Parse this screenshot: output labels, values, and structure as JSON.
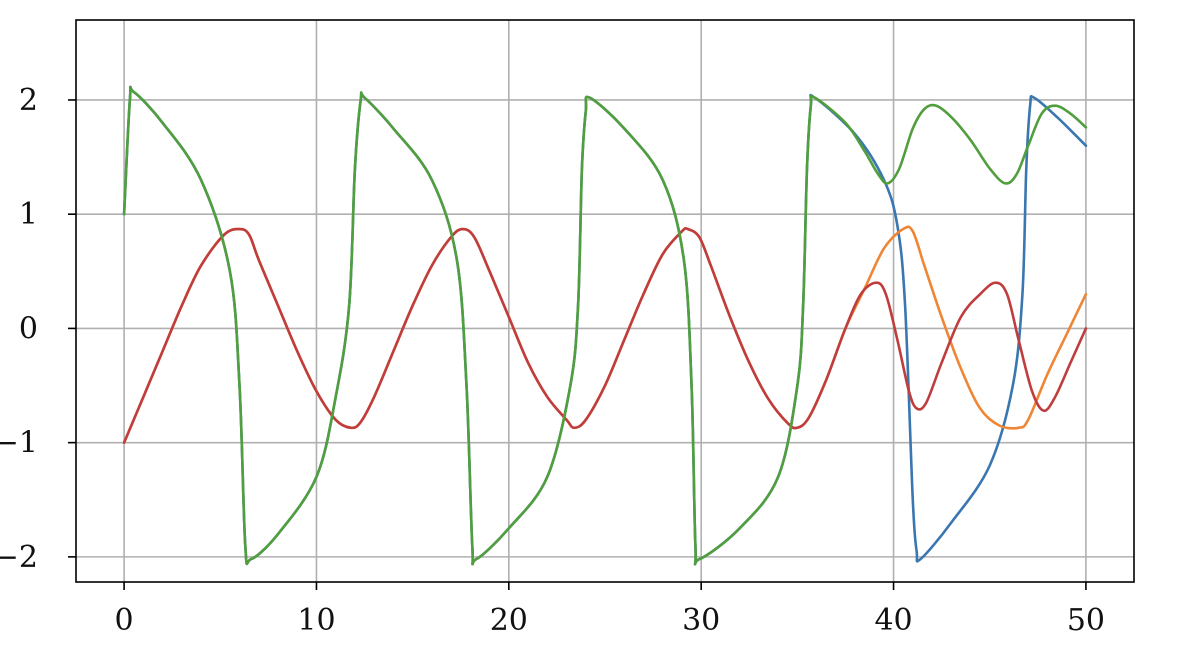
{
  "chart_data": {
    "type": "line",
    "title": "",
    "xlabel": "",
    "ylabel": "",
    "xlim": [
      -2.5,
      52.5
    ],
    "ylim": [
      -2.22,
      2.7
    ],
    "grid": true,
    "legend": "none",
    "xticks": [
      0,
      10,
      20,
      30,
      40,
      50
    ],
    "xtick_labels": [
      "0",
      "10",
      "20",
      "30",
      "40",
      "50"
    ],
    "yticks": [
      -2,
      -1,
      0,
      1,
      2
    ],
    "ytick_labels": [
      "−2",
      "−1",
      "0",
      "1",
      "2"
    ],
    "series": [
      {
        "color": "#3a76af",
        "points": [
          [
            0,
            1.0
          ],
          [
            0.3,
            2.0
          ],
          [
            0.5,
            2.07
          ],
          [
            2,
            1.8
          ],
          [
            4,
            1.3
          ],
          [
            5.5,
            0.5
          ],
          [
            6,
            -0.5
          ],
          [
            6.3,
            -1.9
          ],
          [
            6.6,
            -2.02
          ],
          [
            8,
            -1.8
          ],
          [
            10,
            -1.3
          ],
          [
            11,
            -0.6
          ],
          [
            11.7,
            0.2
          ],
          [
            12,
            1.4
          ],
          [
            12.3,
            2.0
          ],
          [
            12.5,
            2.02
          ],
          [
            14,
            1.75
          ],
          [
            16,
            1.3
          ],
          [
            17.3,
            0.6
          ],
          [
            17.8,
            -0.5
          ],
          [
            18.1,
            -1.9
          ],
          [
            18.3,
            -2.02
          ],
          [
            20,
            -1.75
          ],
          [
            22,
            -1.3
          ],
          [
            23.2,
            -0.5
          ],
          [
            23.6,
            0.2
          ],
          [
            23.8,
            1.4
          ],
          [
            24.0,
            1.9
          ],
          [
            24.2,
            2.02
          ],
          [
            26,
            1.75
          ],
          [
            28,
            1.3
          ],
          [
            29.1,
            0.6
          ],
          [
            29.5,
            -0.5
          ],
          [
            29.7,
            -1.9
          ],
          [
            29.9,
            -2.02
          ],
          [
            32,
            -1.75
          ],
          [
            34,
            -1.3
          ],
          [
            35,
            -0.5
          ],
          [
            35.3,
            0.2
          ],
          [
            35.5,
            1.4
          ],
          [
            35.7,
            1.95
          ],
          [
            35.9,
            2.02
          ],
          [
            38,
            1.7
          ],
          [
            39.5,
            1.3
          ],
          [
            40.2,
            0.9
          ],
          [
            40.6,
            0.2
          ],
          [
            41.0,
            -1.5
          ],
          [
            41.2,
            -1.95
          ],
          [
            41.4,
            -2.02
          ],
          [
            43,
            -1.7
          ],
          [
            45,
            -1.2
          ],
          [
            46.2,
            -0.5
          ],
          [
            46.7,
            0.3
          ],
          [
            46.9,
            1.4
          ],
          [
            47.1,
            1.95
          ],
          [
            47.3,
            2.02
          ],
          [
            48.5,
            1.85
          ],
          [
            50,
            1.6
          ]
        ]
      },
      {
        "color": "#ef8636",
        "points": [
          [
            0,
            -1.0
          ],
          [
            1,
            -0.6
          ],
          [
            2,
            -0.2
          ],
          [
            3,
            0.2
          ],
          [
            4,
            0.55
          ],
          [
            5.2,
            0.82
          ],
          [
            6,
            0.87
          ],
          [
            6.5,
            0.82
          ],
          [
            7,
            0.6
          ],
          [
            8,
            0.2
          ],
          [
            9,
            -0.2
          ],
          [
            10,
            -0.55
          ],
          [
            11,
            -0.8
          ],
          [
            11.8,
            -0.87
          ],
          [
            12.3,
            -0.82
          ],
          [
            13,
            -0.6
          ],
          [
            14,
            -0.2
          ],
          [
            15,
            0.2
          ],
          [
            16,
            0.55
          ],
          [
            17,
            0.8
          ],
          [
            17.6,
            0.87
          ],
          [
            18.2,
            0.8
          ],
          [
            19,
            0.5
          ],
          [
            20,
            0.1
          ],
          [
            21,
            -0.3
          ],
          [
            22,
            -0.6
          ],
          [
            23,
            -0.8
          ],
          [
            23.4,
            -0.87
          ],
          [
            24,
            -0.8
          ],
          [
            25,
            -0.5
          ],
          [
            26,
            -0.1
          ],
          [
            27,
            0.3
          ],
          [
            28,
            0.65
          ],
          [
            29,
            0.85
          ],
          [
            29.3,
            0.87
          ],
          [
            29.9,
            0.8
          ],
          [
            30.5,
            0.55
          ],
          [
            31.5,
            0.1
          ],
          [
            32.5,
            -0.3
          ],
          [
            33.5,
            -0.62
          ],
          [
            34.5,
            -0.83
          ],
          [
            35,
            -0.87
          ],
          [
            35.6,
            -0.78
          ],
          [
            36.5,
            -0.45
          ],
          [
            37.5,
            0.0
          ],
          [
            38.5,
            0.35
          ],
          [
            39.5,
            0.7
          ],
          [
            40.5,
            0.87
          ],
          [
            41,
            0.85
          ],
          [
            41.6,
            0.55
          ],
          [
            42.5,
            0.1
          ],
          [
            43.5,
            -0.35
          ],
          [
            44.5,
            -0.7
          ],
          [
            45.5,
            -0.85
          ],
          [
            46.5,
            -0.87
          ],
          [
            47,
            -0.8
          ],
          [
            48,
            -0.4
          ],
          [
            49,
            -0.05
          ],
          [
            50,
            0.3
          ]
        ]
      },
      {
        "color": "#c03d3e",
        "points": [
          [
            0,
            -1.0
          ],
          [
            1,
            -0.6
          ],
          [
            2,
            -0.2
          ],
          [
            3,
            0.2
          ],
          [
            4,
            0.55
          ],
          [
            5.2,
            0.82
          ],
          [
            6,
            0.87
          ],
          [
            6.5,
            0.82
          ],
          [
            7,
            0.6
          ],
          [
            8,
            0.2
          ],
          [
            9,
            -0.2
          ],
          [
            10,
            -0.55
          ],
          [
            11,
            -0.8
          ],
          [
            11.8,
            -0.87
          ],
          [
            12.3,
            -0.82
          ],
          [
            13,
            -0.6
          ],
          [
            14,
            -0.2
          ],
          [
            15,
            0.2
          ],
          [
            16,
            0.55
          ],
          [
            17,
            0.8
          ],
          [
            17.6,
            0.87
          ],
          [
            18.2,
            0.8
          ],
          [
            19,
            0.5
          ],
          [
            20,
            0.1
          ],
          [
            21,
            -0.3
          ],
          [
            22,
            -0.6
          ],
          [
            23,
            -0.8
          ],
          [
            23.4,
            -0.87
          ],
          [
            24,
            -0.8
          ],
          [
            25,
            -0.5
          ],
          [
            26,
            -0.1
          ],
          [
            27,
            0.3
          ],
          [
            28,
            0.65
          ],
          [
            29,
            0.85
          ],
          [
            29.3,
            0.87
          ],
          [
            29.9,
            0.8
          ],
          [
            30.5,
            0.55
          ],
          [
            31.5,
            0.1
          ],
          [
            32.5,
            -0.3
          ],
          [
            33.5,
            -0.62
          ],
          [
            34.5,
            -0.83
          ],
          [
            35,
            -0.87
          ],
          [
            35.6,
            -0.78
          ],
          [
            36.5,
            -0.45
          ],
          [
            37.5,
            0.0
          ],
          [
            38.3,
            0.3
          ],
          [
            39.1,
            0.4
          ],
          [
            39.6,
            0.3
          ],
          [
            40.2,
            -0.1
          ],
          [
            40.8,
            -0.55
          ],
          [
            41.2,
            -0.7
          ],
          [
            41.7,
            -0.65
          ],
          [
            42.5,
            -0.3
          ],
          [
            43.5,
            0.1
          ],
          [
            44.5,
            0.3
          ],
          [
            45.3,
            0.4
          ],
          [
            45.9,
            0.3
          ],
          [
            46.5,
            -0.1
          ],
          [
            47.2,
            -0.55
          ],
          [
            47.8,
            -0.72
          ],
          [
            48.4,
            -0.6
          ],
          [
            49.2,
            -0.3
          ],
          [
            50,
            0.0
          ]
        ]
      },
      {
        "color": "#519e3e",
        "points": [
          [
            0,
            1.0
          ],
          [
            0.3,
            2.0
          ],
          [
            0.5,
            2.07
          ],
          [
            2,
            1.8
          ],
          [
            4,
            1.3
          ],
          [
            5.5,
            0.5
          ],
          [
            6,
            -0.5
          ],
          [
            6.3,
            -1.9
          ],
          [
            6.6,
            -2.02
          ],
          [
            8,
            -1.8
          ],
          [
            10,
            -1.3
          ],
          [
            11,
            -0.6
          ],
          [
            11.7,
            0.2
          ],
          [
            12,
            1.4
          ],
          [
            12.3,
            2.0
          ],
          [
            12.5,
            2.02
          ],
          [
            14,
            1.75
          ],
          [
            16,
            1.3
          ],
          [
            17.3,
            0.6
          ],
          [
            17.8,
            -0.5
          ],
          [
            18.1,
            -1.9
          ],
          [
            18.3,
            -2.02
          ],
          [
            20,
            -1.75
          ],
          [
            22,
            -1.3
          ],
          [
            23.2,
            -0.5
          ],
          [
            23.6,
            0.2
          ],
          [
            23.8,
            1.4
          ],
          [
            24.0,
            1.9
          ],
          [
            24.2,
            2.02
          ],
          [
            26,
            1.75
          ],
          [
            28,
            1.3
          ],
          [
            29.1,
            0.6
          ],
          [
            29.5,
            -0.5
          ],
          [
            29.7,
            -1.9
          ],
          [
            29.9,
            -2.02
          ],
          [
            32,
            -1.75
          ],
          [
            34,
            -1.3
          ],
          [
            35,
            -0.5
          ],
          [
            35.3,
            0.2
          ],
          [
            35.5,
            1.4
          ],
          [
            35.7,
            1.95
          ],
          [
            35.9,
            2.02
          ],
          [
            37.5,
            1.8
          ],
          [
            38.5,
            1.55
          ],
          [
            39.2,
            1.35
          ],
          [
            39.7,
            1.27
          ],
          [
            40.3,
            1.4
          ],
          [
            41,
            1.75
          ],
          [
            41.6,
            1.92
          ],
          [
            42.2,
            1.95
          ],
          [
            43,
            1.85
          ],
          [
            44,
            1.65
          ],
          [
            45,
            1.4
          ],
          [
            45.8,
            1.27
          ],
          [
            46.4,
            1.35
          ],
          [
            47,
            1.6
          ],
          [
            47.7,
            1.88
          ],
          [
            48.4,
            1.95
          ],
          [
            49.2,
            1.88
          ],
          [
            50,
            1.76
          ]
        ]
      }
    ]
  }
}
